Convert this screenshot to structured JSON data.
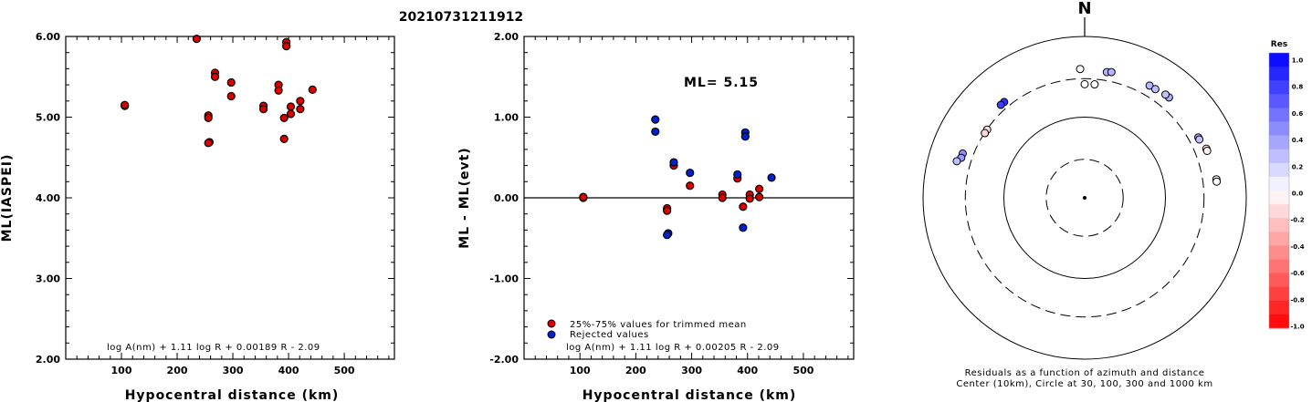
{
  "title": "20210731211912",
  "chart_data": [
    {
      "type": "scatter",
      "ylabel": "ML(IASPEI)",
      "xlabel": "Hypocentral distance (km)",
      "xlim": [
        0,
        590
      ],
      "ylim": [
        2.0,
        6.0
      ],
      "xticks": [
        "100",
        "200",
        "300",
        "400",
        "500"
      ],
      "yticks": [
        "2.00",
        "3.00",
        "4.00",
        "5.00",
        "6.00"
      ],
      "formula": "log A(nm) + 1.11 log R + 0.00189 R - 2.09",
      "series": [
        {
          "color": "#dd0000",
          "points": [
            [
              106,
              5.14
            ],
            [
              106,
              5.15
            ],
            [
              235,
              5.97
            ],
            [
              256,
              5.02
            ],
            [
              256,
              4.99
            ],
            [
              258,
              4.69
            ],
            [
              256,
              4.68
            ],
            [
              268,
              5.55
            ],
            [
              268,
              5.5
            ],
            [
              297,
              5.43
            ],
            [
              297,
              5.26
            ],
            [
              355,
              5.14
            ],
            [
              355,
              5.1
            ],
            [
              382,
              5.4
            ],
            [
              382,
              5.33
            ],
            [
              392,
              4.99
            ],
            [
              392,
              4.73
            ],
            [
              396,
              5.93
            ],
            [
              396,
              5.88
            ],
            [
              404,
              5.04
            ],
            [
              404,
              5.13
            ],
            [
              421,
              5.1
            ],
            [
              421,
              5.2
            ],
            [
              443,
              5.34
            ]
          ]
        }
      ]
    },
    {
      "type": "scatter",
      "ylabel": "ML - ML(evt)",
      "xlabel": "Hypocentral distance (km)",
      "xlim": [
        0,
        590
      ],
      "ylim": [
        -2.0,
        2.0
      ],
      "xticks": [
        "100",
        "200",
        "300",
        "400",
        "500"
      ],
      "yticks": [
        "-2.00",
        "-1.00",
        "0.00",
        "1.00",
        "2.00"
      ],
      "annotation": "ML= 5.15",
      "formula": "log A(nm) + 1.11 log R + 0.00205 R - 2.09",
      "legend": [
        "25%-75% values for trimmed mean",
        "Rejected values"
      ],
      "series": [
        {
          "name": "25%-75% values for trimmed mean",
          "color": "#dd0000",
          "points": [
            [
              106,
              0.0
            ],
            [
              106,
              0.01
            ],
            [
              256,
              -0.13
            ],
            [
              256,
              -0.16
            ],
            [
              268,
              0.4
            ],
            [
              297,
              0.15
            ],
            [
              355,
              0.04
            ],
            [
              355,
              0.0
            ],
            [
              382,
              0.24
            ],
            [
              392,
              -0.11
            ],
            [
              404,
              0.04
            ],
            [
              404,
              -0.01
            ],
            [
              421,
              0.01
            ],
            [
              421,
              0.11
            ]
          ]
        },
        {
          "name": "Rejected values",
          "color": "#0022cc",
          "points": [
            [
              235,
              0.97
            ],
            [
              235,
              0.82
            ],
            [
              258,
              -0.44
            ],
            [
              256,
              -0.46
            ],
            [
              268,
              0.44
            ],
            [
              297,
              0.31
            ],
            [
              382,
              0.29
            ],
            [
              392,
              -0.37
            ],
            [
              396,
              0.81
            ],
            [
              396,
              0.76
            ],
            [
              443,
              0.25
            ]
          ]
        }
      ]
    },
    {
      "type": "scatter",
      "subtype": "polar residuals",
      "north_label": "N",
      "caption_line1": "Residuals as a function of azimuth and distance",
      "caption_line2": "Center (10km), Circle at 30, 100, 300 and 1000 km",
      "colorbar_title": "Res",
      "colorbar_ticks": [
        "1.0",
        "0.8",
        "0.6",
        "0.4",
        "0.2",
        "0.0",
        "-0.2",
        "-0.4",
        "-0.6",
        "-0.8",
        "-1.0"
      ],
      "rings_km": [
        30,
        100,
        300,
        1000
      ],
      "ring_styles": [
        "dashed",
        "solid",
        "dashed",
        "solid"
      ],
      "points": [
        {
          "az": 10,
          "dist": 382,
          "res": 0.29
        },
        {
          "az": 12,
          "dist": 392,
          "res": 0.29
        },
        {
          "az": 358,
          "dist": 396,
          "res": 0.0
        },
        {
          "az": 5,
          "dist": 258,
          "res": 0.0
        },
        {
          "az": 0,
          "dist": 256,
          "res": 0.0
        },
        {
          "az": 320,
          "dist": 355,
          "res": 0.81
        },
        {
          "az": 318,
          "dist": 355,
          "res": 0.76
        },
        {
          "az": 305,
          "dist": 297,
          "res": -0.13
        },
        {
          "az": 303,
          "dist": 297,
          "res": -0.16
        },
        {
          "az": 290,
          "dist": 404,
          "res": 0.44
        },
        {
          "az": 288,
          "dist": 404,
          "res": 0.4
        },
        {
          "az": 286,
          "dist": 443,
          "res": 0.25
        },
        {
          "az": 40,
          "dist": 421,
          "res": 0.31
        },
        {
          "az": 38,
          "dist": 421,
          "res": 0.24
        },
        {
          "az": 30,
          "dist": 404,
          "res": 0.29
        },
        {
          "az": 33,
          "dist": 404,
          "res": 0.25
        },
        {
          "az": 62,
          "dist": 392,
          "res": 0.31
        },
        {
          "az": 63,
          "dist": 392,
          "res": 0.24
        },
        {
          "az": 68,
          "dist": 421,
          "res": -0.11
        },
        {
          "az": 69,
          "dist": 421,
          "res": -0.04
        },
        {
          "az": 82,
          "dist": 443,
          "res": 0.01
        },
        {
          "az": 83,
          "dist": 443,
          "res": 0.0
        }
      ]
    }
  ]
}
